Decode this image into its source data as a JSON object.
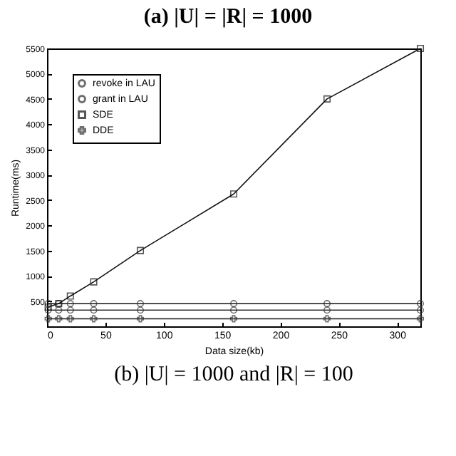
{
  "chart_data": {
    "type": "line",
    "title": "(b) |U| = 1000 and |R| = 100",
    "xlabel": "Data size(kb)",
    "ylabel": "Runtime(ms)",
    "annotations": [
      "(a) |U| = |R| = 1000"
    ],
    "x": [
      1,
      10,
      20,
      40,
      80,
      160,
      240,
      320
    ],
    "series": [
      {
        "name": "revoke in LAU",
        "color": "#333333",
        "marker": "circle",
        "values": [
          450,
          450,
          450,
          450,
          450,
          450,
          450,
          450
        ]
      },
      {
        "name": "grant in LAU",
        "color": "#333333",
        "marker": "circle",
        "values": [
          320,
          320,
          320,
          320,
          320,
          320,
          320,
          320
        ]
      },
      {
        "name": "SDE",
        "color": "#111111",
        "marker": "square",
        "values": [
          380,
          450,
          600,
          880,
          1500,
          2620,
          4500,
          5500
        ]
      },
      {
        "name": "DDE",
        "color": "#333333",
        "marker": "cross",
        "values": [
          150,
          150,
          150,
          150,
          150,
          150,
          150,
          150
        ]
      }
    ],
    "xlim": [
      0,
      320
    ],
    "xticks": [
      0,
      50,
      100,
      150,
      200,
      250,
      300
    ],
    "ylim": [
      0,
      5500
    ],
    "yticks": [
      500,
      1000,
      1500,
      2000,
      2500,
      3000,
      3500,
      4000,
      4500,
      5000,
      5500
    ],
    "grid": false,
    "legend": "top left"
  }
}
